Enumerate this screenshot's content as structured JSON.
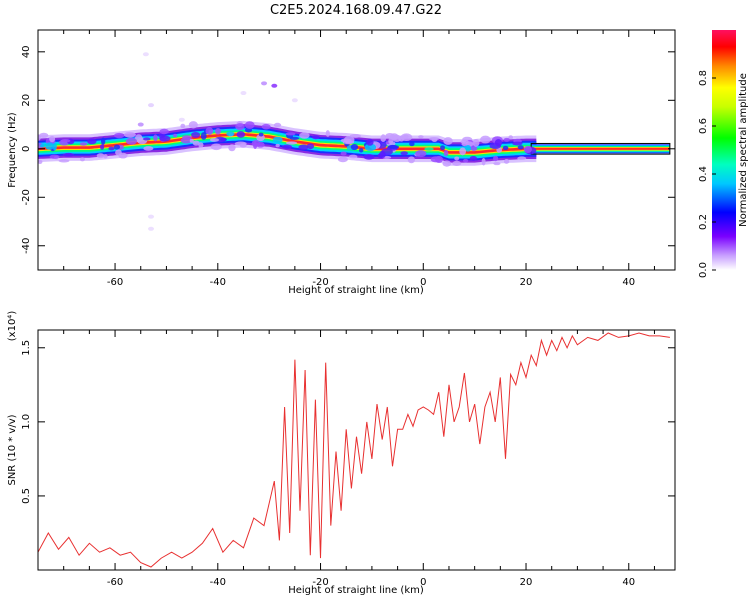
{
  "title": "C2E5.2024.168.09.47.G22",
  "chart_data": [
    {
      "type": "heatmap",
      "title": "C2E5.2024.168.09.47.G22",
      "xlabel": "Height of straight line (km)",
      "ylabel": "Frequency (Hz)",
      "xlim": [
        -75,
        49
      ],
      "ylim": [
        -50,
        49
      ],
      "xticks": [
        -60,
        -40,
        -20,
        0,
        20,
        40
      ],
      "yticks": [
        -40,
        -20,
        0,
        20,
        40
      ],
      "xtick_labels": [
        "-60",
        "-40",
        "-20",
        "0",
        "20",
        "40"
      ],
      "ytick_labels": [
        "-40",
        "-20",
        "0",
        "20",
        "40"
      ],
      "colorbar": {
        "label": "Normalized spectral amplitude",
        "range": [
          0.0,
          1.0
        ],
        "ticks": [
          0.0,
          0.2,
          0.4,
          0.6,
          0.8
        ],
        "tick_labels": [
          "0.0",
          "0.2",
          "0.4",
          "0.6",
          "0.8"
        ],
        "colormap": "rainbow"
      },
      "ridge": {
        "x": [
          -75,
          -70,
          -65,
          -60,
          -55,
          -50,
          -45,
          -40,
          -35,
          -30,
          -25,
          -20,
          -15,
          -10,
          -5,
          0,
          3,
          5,
          10,
          15,
          20,
          25,
          30,
          35,
          40,
          45,
          48
        ],
        "y": [
          0,
          0.5,
          0.5,
          1.5,
          2.5,
          3,
          4.5,
          5.5,
          6,
          5,
          3,
          1.5,
          1,
          0,
          0,
          0,
          0,
          -1.5,
          -1.5,
          -0.5,
          0,
          0,
          0,
          0,
          0,
          0,
          0
        ]
      },
      "grid": false
    },
    {
      "type": "line",
      "xlabel": "Height of straight line (km)",
      "ylabel": "SNR (10 * v/v)",
      "y_multiplier": "(x10⁴)",
      "xlim": [
        -75,
        49
      ],
      "ylim": [
        0,
        1.62
      ],
      "xticks": [
        -60,
        -40,
        -20,
        0,
        20,
        40
      ],
      "yticks": [
        0.5,
        1.0,
        1.5
      ],
      "xtick_labels": [
        "-60",
        "-40",
        "-20",
        "0",
        "20",
        "40"
      ],
      "ytick_labels": [
        "0.5",
        "1.0",
        "1.5"
      ],
      "color": "#e83030",
      "series": [
        {
          "x": [
            -75,
            -73,
            -71,
            -69,
            -67,
            -65,
            -63,
            -61,
            -59,
            -57,
            -55,
            -53,
            -51,
            -49,
            -47,
            -45,
            -43,
            -41,
            -39,
            -37,
            -35,
            -33,
            -31,
            -29,
            -28,
            -27,
            -26,
            -25,
            -24,
            -23,
            -22,
            -21,
            -20,
            -19,
            -18,
            -17,
            -16,
            -15,
            -14,
            -13,
            -12,
            -11,
            -10,
            -9,
            -8,
            -7,
            -6,
            -5,
            -4,
            -3,
            -2,
            -1,
            0,
            1,
            2,
            3,
            4,
            5,
            6,
            7,
            8,
            9,
            10,
            11,
            12,
            13,
            14,
            15,
            16,
            17,
            18,
            19,
            20,
            21,
            22,
            23,
            24,
            25,
            26,
            27,
            28,
            29,
            30,
            32,
            34,
            36,
            38,
            40,
            42,
            44,
            46,
            48
          ],
          "y": [
            0.12,
            0.25,
            0.14,
            0.22,
            0.1,
            0.18,
            0.12,
            0.15,
            0.1,
            0.12,
            0.05,
            0.02,
            0.08,
            0.12,
            0.08,
            0.12,
            0.18,
            0.28,
            0.12,
            0.2,
            0.15,
            0.35,
            0.3,
            0.6,
            0.2,
            1.1,
            0.25,
            1.42,
            0.4,
            1.35,
            0.1,
            1.15,
            0.08,
            1.4,
            0.3,
            0.8,
            0.4,
            0.95,
            0.55,
            0.9,
            0.65,
            1.0,
            0.75,
            1.12,
            0.88,
            1.1,
            0.7,
            0.95,
            0.95,
            1.05,
            0.97,
            1.08,
            1.1,
            1.08,
            1.05,
            1.2,
            0.9,
            1.25,
            1.0,
            1.1,
            1.33,
            1.0,
            1.12,
            0.85,
            1.1,
            1.2,
            1.0,
            1.3,
            0.75,
            1.32,
            1.25,
            1.4,
            1.3,
            1.45,
            1.38,
            1.55,
            1.45,
            1.55,
            1.48,
            1.57,
            1.5,
            1.58,
            1.52,
            1.57,
            1.55,
            1.6,
            1.57,
            1.58,
            1.6,
            1.58,
            1.58,
            1.57
          ]
        }
      ]
    }
  ]
}
